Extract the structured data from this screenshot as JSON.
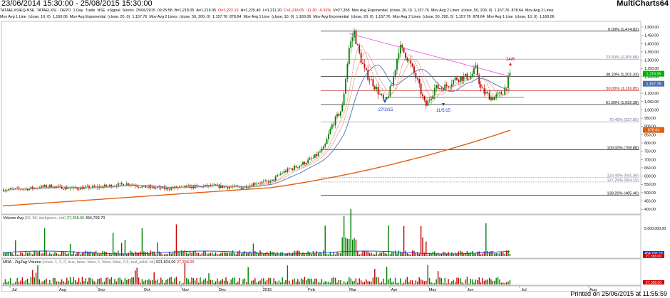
{
  "window": {
    "date_range": "23/06/2014 15:30:00 - 25/08/2015 15:30:00",
    "app_name": "MultiCharts64"
  },
  "statusbar": {
    "line1": [
      "TATAELXSIEQ-NSE",
      "TATAELXSI - DEPO",
      "1 Day",
      "Trade",
      "NSE",
      "eSignal",
      "Stocks",
      "25/06/2015",
      "09:25:58",
      "B=1,218.05",
      "A=1,219.95",
      "O=1,222.10",
      "H=1,225.40",
      "L=1,211.20",
      "C=1,218.05",
      "-11.30",
      "-0.92%",
      "V=27,358",
      "Mov Avg Exponential",
      "(close, 20, 0)",
      "1,157.76",
      "Mov Avg 2 Lines",
      "(close, 50, 200, 0)",
      "1,157.76",
      "878.64",
      "Mov Avg 2 Lines"
    ],
    "line2": [
      "Mov Avg 1 Line",
      "(close, 10, 0)",
      "1,160.06",
      "Mov Avg Exponential",
      "(close, 20, 0)",
      "1,157.76",
      "Mov Avg 2 Lines",
      "(close, 50, 200, 0)",
      "1,157.76",
      "878.64",
      "Mov Avg 1 Line",
      "(close, 10, 0)",
      "1,160.06",
      "Mov Avg Exponential",
      "(close, 20, 0)",
      "1,157.76",
      "Mov Avg 2 Lines",
      "(close, 50, 200, 0)",
      "1,157.76",
      "878.64",
      "Mov Avg 1 Line",
      "(close, 10, 0)",
      "1,160.06"
    ],
    "line3": [
      "Mov Avg 1 Line",
      "(close, 10, 0)",
      "1,160.06",
      "Mov Avg Exponential",
      "(close, 20, 0)",
      "1,157.76",
      "Mov Avg 2 Lines",
      "(close, 50, 200, 0)",
      "1,157.76",
      "878.64"
    ]
  },
  "fib_levels": [
    {
      "label": "0.00% (1,474.82)",
      "value": 1474.82
    },
    {
      "label": "23.60% (1,305.88)",
      "value": 1305.88
    },
    {
      "label": "38.20% (1,201.33)",
      "value": 1201.33
    },
    {
      "label": "50.00% (1,116.85)",
      "value": 1116.85
    },
    {
      "label": "61.80% (1,032.38)",
      "value": 1032.38
    },
    {
      "label": "76.40% (927.85)",
      "value": 927.85
    },
    {
      "label": "100.00% (758.88)",
      "value": 758.88
    },
    {
      "label": "123.40% (591.36)",
      "value": 591.36
    },
    {
      "label": "127.20% (564.15)",
      "value": 564.15
    },
    {
      "label": "138.20% (485.40)",
      "value": 485.4
    }
  ],
  "price_axis": {
    "ticks": [
      "1,500.00",
      "1,450.00",
      "1,400.00",
      "1,350.00",
      "1,300.00",
      "1,250.00",
      "1,200.00",
      "1,150.00",
      "1,100.00",
      "1,050.00",
      "1,000.00",
      "950.00",
      "900.00",
      "850.00",
      "800.00",
      "750.00",
      "700.00",
      "650.00",
      "600.00",
      "550.00",
      "500.00",
      "450.00",
      "400.00"
    ],
    "last_price": "1,218.05",
    "ma_value": "1,157.76",
    "ma200_value": "878.64"
  },
  "annotations": {
    "pivot1": "27/3/15",
    "pivot2": "11/5/15",
    "breakout": "24/6"
  },
  "volume_pane": {
    "title": "Volume Avg",
    "params": "(10, 50, darkgreen, red)",
    "value1": "27,358.00",
    "value2": "454,793.70",
    "axis_label": "5,000,000.00",
    "badge1": "454,793.70",
    "badge2": "27,358.00"
  },
  "mra_pane": {
    "title": "MRA - ZigZag Volume",
    "params": "(close, 1, 2, 0, true, false, false, 1, false, false, 0.9, tool_solid, bk)",
    "value1": "921,824.00",
    "value2": "27,358.00",
    "badge": "27,358.00"
  },
  "time_axis": [
    "Jul",
    "Aug",
    "Sep",
    "Oct",
    "Nov",
    "Dec",
    "2015",
    "Feb",
    "Mar",
    "Apr",
    "May",
    "Jun",
    "Jul",
    "Aug"
  ],
  "footer": "Printed on 25/06/2015 at 11:55:59",
  "colors": {
    "up_candle": "#008000",
    "down_candle": "#c00000",
    "ma50": "#5070b0",
    "ma200": "#e06010",
    "ema20": "#d07060",
    "trendline": "#e040e0",
    "fib_line": "#000000",
    "last_price_badge": "#00b000"
  }
}
